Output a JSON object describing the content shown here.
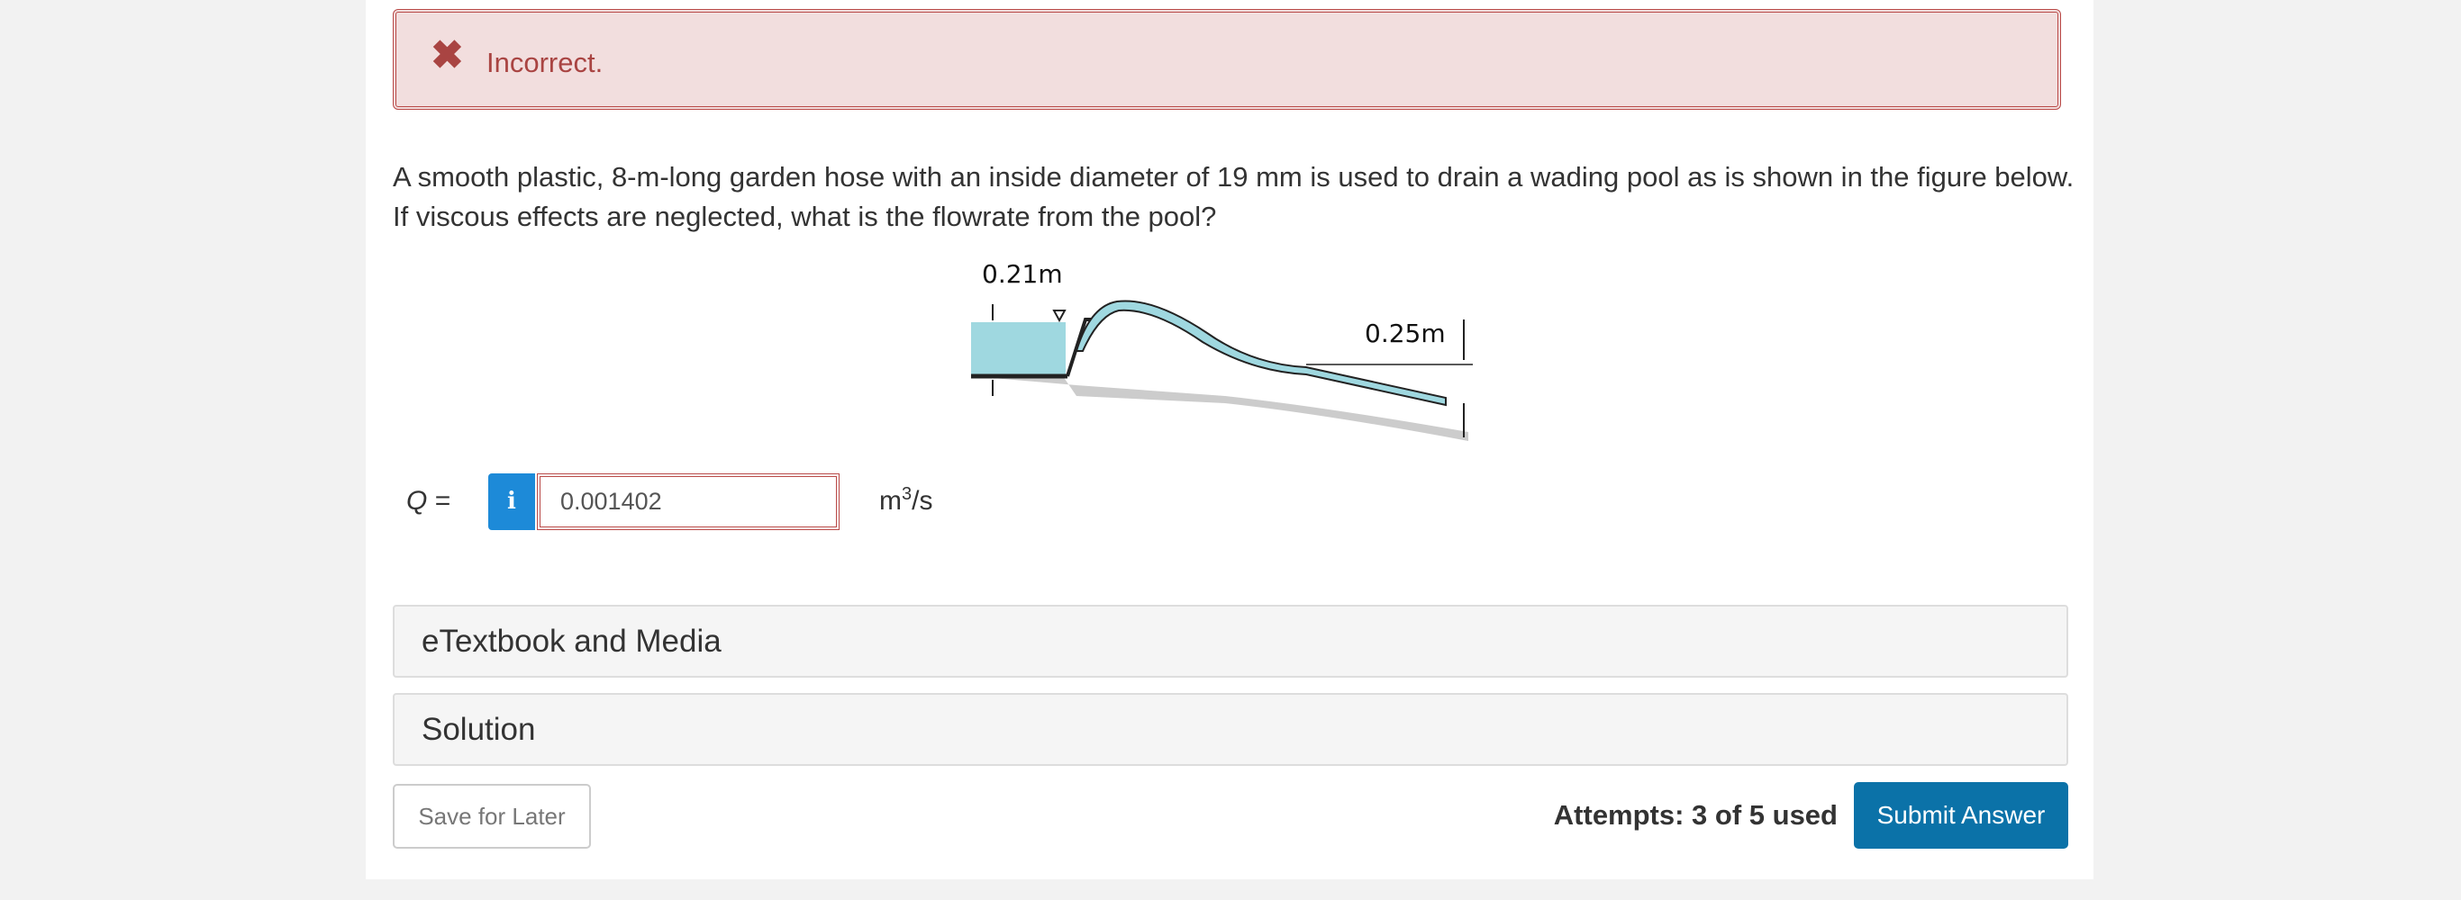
{
  "alert": {
    "icon": "✖",
    "message": "Incorrect."
  },
  "question": {
    "lines": [
      "A smooth plastic, 8-m-long garden hose with an inside diameter of 19 mm is used to drain a wading pool as is shown in the figure below.",
      "If viscous effects are neglected, what is the flowrate from the pool?"
    ]
  },
  "figure": {
    "depth_label": "0.21m",
    "drop_label": "0.25m"
  },
  "answer": {
    "label": "Q",
    "equals": "=",
    "info": "i",
    "value": "0.001402",
    "unit_base": "m",
    "unit_exponent": "3",
    "unit_suffix": "/s"
  },
  "panels": [
    "eTextbook and Media",
    "Solution"
  ],
  "footer": {
    "save": "Save for Later",
    "attempts": "Attempts: 3 of 5 used",
    "submit": "Submit Answer"
  }
}
